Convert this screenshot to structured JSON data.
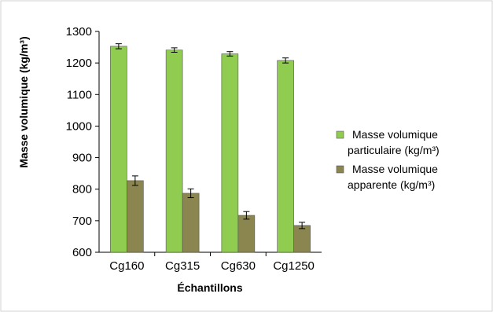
{
  "chart_data": {
    "type": "bar",
    "xlabel": "Échantillons",
    "ylabel": "Masse volumique (kg/m³)",
    "ylim": [
      600,
      1300
    ],
    "yticks": [
      600,
      700,
      800,
      900,
      1000,
      1100,
      1200,
      1300
    ],
    "categories": [
      "Cg160",
      "Cg315",
      "Cg630",
      "Cg1250"
    ],
    "series": [
      {
        "name": "Masse volumique particulaire (kg/m³)",
        "legend_lines": [
          "Masse volumique",
          "particulaire  (kg/m³)"
        ],
        "color": "#8fcc4f",
        "values": [
          1253,
          1241,
          1229,
          1208
        ],
        "errors": [
          8,
          7,
          7,
          8
        ]
      },
      {
        "name": "Masse volumique apparente (kg/m³)",
        "legend_lines": [
          "Masse volumique",
          "apparente (kg/m³)"
        ],
        "color": "#8b8650",
        "values": [
          827,
          787,
          717,
          685
        ],
        "errors": [
          15,
          14,
          12,
          10
        ]
      }
    ],
    "grid": false,
    "legend_position": "right"
  }
}
